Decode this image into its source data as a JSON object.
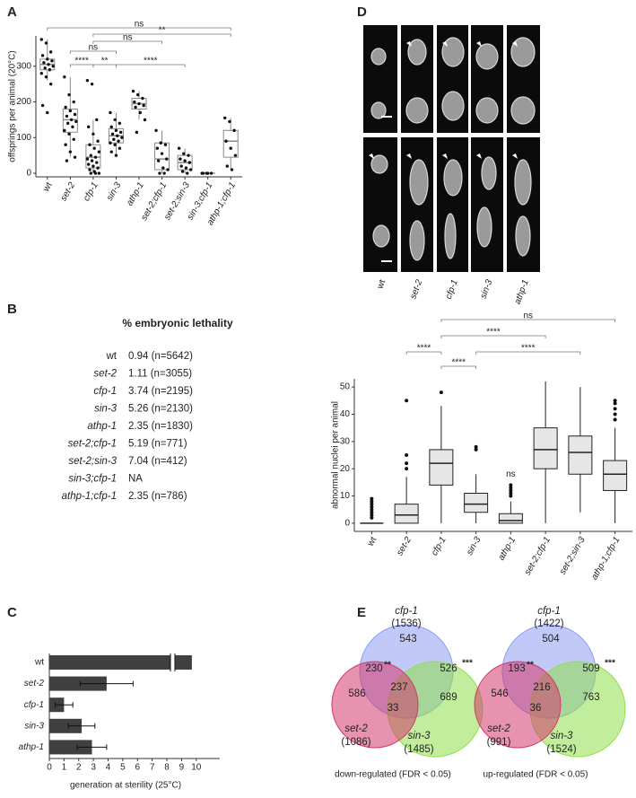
{
  "panel_labels": [
    "A",
    "B",
    "C",
    "D",
    "E"
  ],
  "chart_data": [
    {
      "type": "box",
      "ylabel": "offsprings per animal (20°C)",
      "categories": [
        "wt",
        "set-2",
        "cfp-1",
        "sin-3",
        "athp-1",
        "set-2;cfp-1",
        "set-2;sin-3",
        "sin-3;cfp-1",
        "athp-1;cfp-1"
      ],
      "ylim": [
        -10,
        385
      ],
      "yticks": [
        0,
        100,
        200,
        300
      ],
      "box_fill": "#ffffff",
      "box_stroke": "#8a8a8a",
      "point_color": "#111111",
      "boxes": [
        {
          "low": 260,
          "q1": 290,
          "median": 305,
          "q3": 320,
          "high": 375,
          "points": [
            375,
            365,
            340,
            330,
            320,
            315,
            310,
            305,
            300,
            295,
            290,
            280,
            270,
            250,
            190,
            170
          ]
        },
        {
          "low": 45,
          "q1": 115,
          "median": 150,
          "q3": 180,
          "high": 270,
          "points": [
            270,
            220,
            200,
            185,
            175,
            165,
            160,
            150,
            145,
            140,
            130,
            120,
            110,
            95,
            80,
            60,
            45,
            35
          ]
        },
        {
          "low": 0,
          "q1": 15,
          "median": 45,
          "q3": 80,
          "high": 150,
          "points": [
            260,
            250,
            150,
            130,
            110,
            90,
            80,
            70,
            60,
            50,
            45,
            40,
            35,
            30,
            25,
            20,
            15,
            10,
            5,
            0,
            0,
            0
          ]
        },
        {
          "low": 50,
          "q1": 85,
          "median": 105,
          "q3": 125,
          "high": 170,
          "points": [
            170,
            150,
            140,
            130,
            120,
            115,
            110,
            105,
            100,
            95,
            90,
            85,
            80,
            70,
            60,
            50
          ]
        },
        {
          "low": 150,
          "q1": 180,
          "median": 195,
          "q3": 210,
          "high": 230,
          "points": [
            230,
            220,
            210,
            200,
            195,
            190,
            185,
            170,
            150,
            115
          ]
        },
        {
          "low": 0,
          "q1": 10,
          "median": 40,
          "q3": 85,
          "high": 120,
          "points": [
            120,
            85,
            80,
            70,
            55,
            40,
            35,
            15,
            10,
            0,
            0
          ]
        },
        {
          "low": 0,
          "q1": 10,
          "median": 30,
          "q3": 50,
          "high": 70,
          "points": [
            70,
            55,
            50,
            40,
            35,
            30,
            20,
            15,
            10,
            5,
            0
          ]
        },
        {
          "low": 0,
          "q1": 0,
          "median": 0,
          "q3": 0,
          "high": 0,
          "points": [
            0,
            0,
            0,
            0,
            0
          ]
        },
        {
          "low": 10,
          "q1": 45,
          "median": 90,
          "q3": 120,
          "high": 155,
          "points": [
            155,
            145,
            120,
            90,
            70,
            50,
            20,
            10
          ]
        }
      ],
      "comparisons": [
        {
          "from": 0,
          "to": 8,
          "label": "ns"
        },
        {
          "from": 2,
          "to": 8,
          "label": "**"
        },
        {
          "from": 2,
          "to": 5,
          "label": "ns"
        },
        {
          "from": 1,
          "to": 3,
          "label": "ns"
        },
        {
          "from": 1,
          "to": 2,
          "label": "****"
        },
        {
          "from": 2,
          "to": 3,
          "label": "**"
        },
        {
          "from": 3,
          "to": 6,
          "label": "****"
        }
      ]
    },
    {
      "type": "hbar",
      "xlabel": "generation at sterility (25°C)",
      "categories": [
        "wt",
        "set-2",
        "cfp-1",
        "sin-3",
        "athp-1"
      ],
      "values": [
        9.7,
        3.9,
        1.0,
        2.2,
        2.9
      ],
      "errors": [
        null,
        1.8,
        0.6,
        0.9,
        1.0
      ],
      "color": "#404040",
      "xlim": [
        0,
        11.6
      ],
      "xticks": [
        0,
        1,
        2,
        3,
        4,
        5,
        6,
        7,
        8,
        9,
        10
      ]
    },
    {
      "type": "box",
      "ylabel": "abnormal nuclei per animal",
      "categories": [
        "wt",
        "set-2",
        "cfp-1",
        "sin-3",
        "athp-1",
        "set-2;cfp-1",
        "set-2;sin-3",
        "athp-1;cfp-1"
      ],
      "ylim": [
        -3,
        53
      ],
      "yticks": [
        0,
        10,
        20,
        30,
        40,
        50
      ],
      "box_fill": "#e6e6e6",
      "box_stroke": "#222222",
      "point_color": "#111111",
      "boxes": [
        {
          "low": 0,
          "q1": 0,
          "median": 0,
          "q3": 0,
          "high": 0,
          "outliers": [
            2,
            3,
            4,
            5,
            6,
            7,
            8,
            9
          ]
        },
        {
          "low": 0,
          "q1": 0,
          "median": 3,
          "q3": 7,
          "high": 17,
          "outliers": [
            20,
            22,
            25,
            45
          ]
        },
        {
          "low": 0,
          "q1": 14,
          "median": 22,
          "q3": 27,
          "high": 43,
          "outliers": [
            48
          ]
        },
        {
          "low": 0,
          "q1": 4,
          "median": 7,
          "q3": 11,
          "high": 18,
          "outliers": [
            27,
            28
          ]
        },
        {
          "low": 0,
          "q1": 0,
          "median": 1,
          "q3": 3.5,
          "high": 8,
          "outliers": [
            10,
            11,
            12,
            13,
            14
          ]
        },
        {
          "low": 0,
          "q1": 20,
          "median": 27,
          "q3": 35,
          "high": 52,
          "outliers": []
        },
        {
          "low": 4,
          "q1": 18,
          "median": 26,
          "q3": 32,
          "high": 50,
          "outliers": []
        },
        {
          "low": 0,
          "q1": 12,
          "median": 18,
          "q3": 23,
          "high": 35,
          "outliers": [
            38,
            40,
            42,
            44,
            45
          ]
        }
      ],
      "comparisons": [
        {
          "from": 2,
          "to": 7,
          "label": "ns"
        },
        {
          "from": 2,
          "to": 5,
          "label": "****"
        },
        {
          "from": 1,
          "to": 2,
          "label": "****"
        },
        {
          "from": 3,
          "to": 6,
          "label": "****"
        },
        {
          "from": 2,
          "to": 3,
          "label": "****"
        }
      ],
      "annotations": [
        {
          "category": 4,
          "text": "ns"
        }
      ]
    }
  ],
  "table": {
    "title": "% embryonic lethality",
    "rows": [
      [
        "wt",
        "0.94 (n=5642)"
      ],
      [
        "set-2",
        "1.11 (n=3055)"
      ],
      [
        "cfp-1",
        "3.74 (n=2195)"
      ],
      [
        "sin-3",
        "5.26 (n=2130)"
      ],
      [
        "athp-1",
        "2.35 (n=1830)"
      ],
      [
        "set-2;cfp-1",
        "5.19 (n=771)"
      ],
      [
        "set-2;sin-3",
        "7.04 (n=412)"
      ],
      [
        "sin-3;cfp-1",
        "NA"
      ],
      [
        "athp-1;cfp-1",
        "2.35 (n=786)"
      ]
    ]
  },
  "images": {
    "labels": [
      "wt",
      "set-2",
      "cfp-1",
      "sin-3",
      "athp-1"
    ]
  },
  "venn": [
    {
      "sets": [
        {
          "name": "cfp-1",
          "total": "(1536)",
          "color": "#8e9df2"
        },
        {
          "name": "set-2",
          "total": "(1086)",
          "color": "#d4386b"
        },
        {
          "name": "sin-3",
          "total": "(1485)",
          "color": "#8fdf4a"
        }
      ],
      "regions": [
        543,
        230,
        526,
        586,
        237,
        689,
        33
      ],
      "stars": [
        "**",
        "***"
      ],
      "caption": "down-regulated (FDR < 0.05)"
    },
    {
      "sets": [
        {
          "name": "cfp-1",
          "total": "(1422)",
          "color": "#8e9df2"
        },
        {
          "name": "set-2",
          "total": "(991)",
          "color": "#d4386b"
        },
        {
          "name": "sin-3",
          "total": "(1524)",
          "color": "#8fdf4a"
        }
      ],
      "regions": [
        504,
        193,
        509,
        546,
        216,
        763,
        36
      ],
      "stars": [
        "**",
        "***"
      ],
      "caption": "up-regulated (FDR < 0.05)"
    }
  ]
}
